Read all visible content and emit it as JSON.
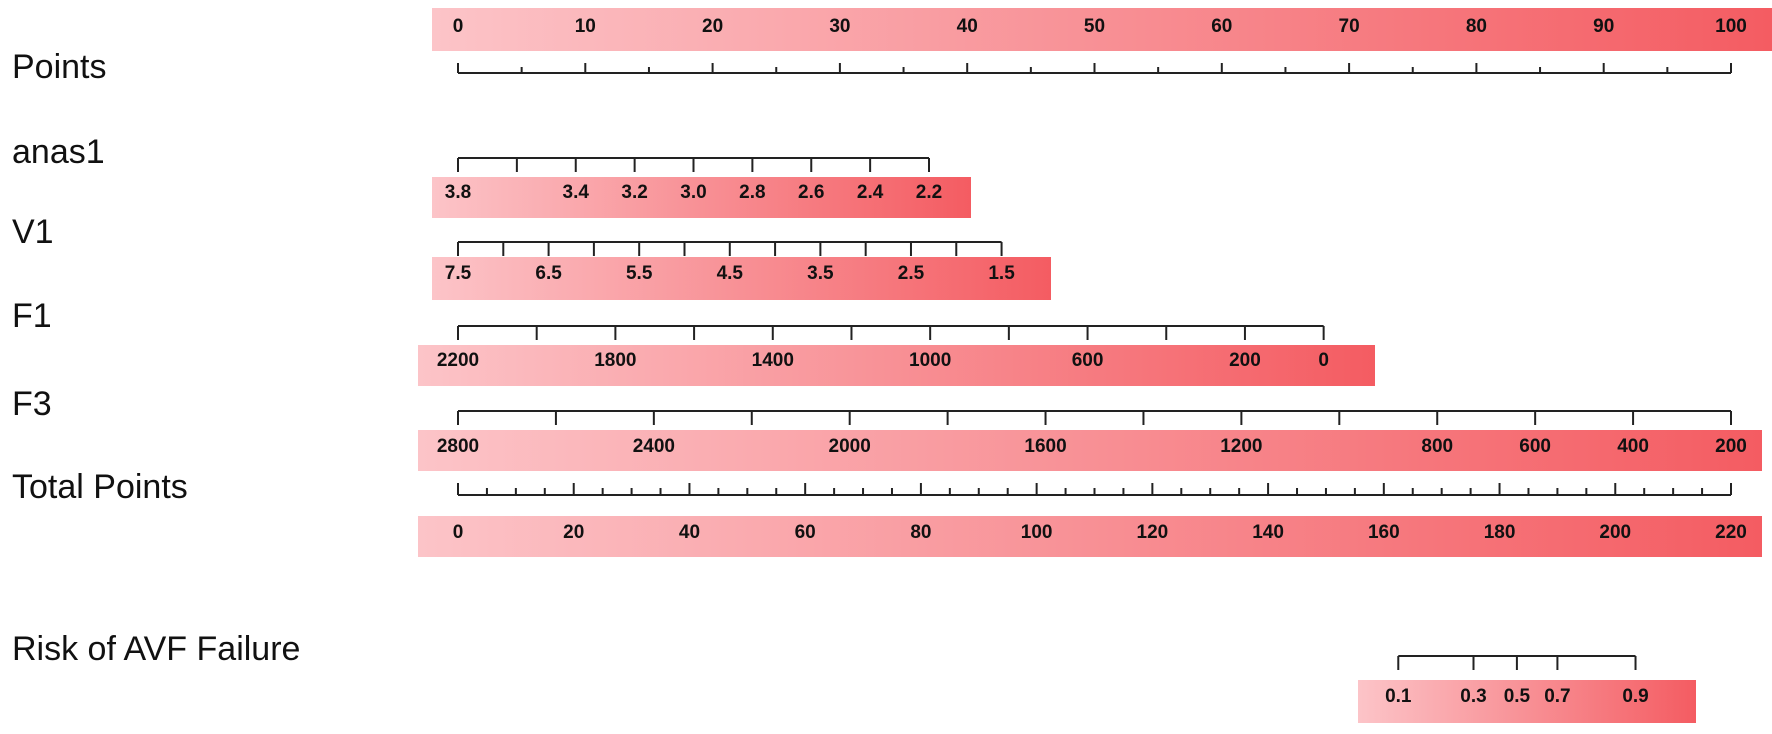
{
  "chart_data": {
    "type": "nomogram",
    "title": "",
    "rows": [
      {
        "name": "Points",
        "label_text": "Points",
        "scale_min": 0,
        "scale_max": 100,
        "major_ticks": [
          0,
          10,
          20,
          30,
          40,
          50,
          60,
          70,
          80,
          90,
          100
        ],
        "minor_ticks": [
          5,
          15,
          25,
          35,
          45,
          55,
          65,
          75,
          85,
          95
        ],
        "labels": [
          "0",
          "10",
          "20",
          "30",
          "40",
          "50",
          "60",
          "70",
          "80",
          "90",
          "100"
        ],
        "label_position": "above",
        "points_start": 0,
        "points_end": 100
      },
      {
        "name": "anas1",
        "label_text": "anas1",
        "scale_min": 3.8,
        "scale_max": 2.2,
        "major_ticks": [
          3.8,
          3.6,
          3.4,
          3.2,
          3.0,
          2.8,
          2.6,
          2.4,
          2.2
        ],
        "minor_ticks": [],
        "labels": [
          "3.8",
          "3.4",
          "3.2",
          "3.0",
          "2.8",
          "2.6",
          "2.4",
          "2.2"
        ],
        "label_values": [
          3.8,
          3.4,
          3.2,
          3.0,
          2.8,
          2.6,
          2.4,
          2.2
        ],
        "label_position": "below",
        "points_start": 0,
        "points_end": 37
      },
      {
        "name": "V1",
        "label_text": "V1",
        "scale_min": 7.5,
        "scale_max": 1.5,
        "major_ticks": [
          7.5,
          7.0,
          6.5,
          6.0,
          5.5,
          5.0,
          4.5,
          4.0,
          3.5,
          3.0,
          2.5,
          2.0,
          1.5
        ],
        "minor_ticks": [],
        "labels": [
          "7.5",
          "6.5",
          "5.5",
          "4.5",
          "3.5",
          "2.5",
          "1.5"
        ],
        "label_values": [
          7.5,
          6.5,
          5.5,
          4.5,
          3.5,
          2.5,
          1.5
        ],
        "label_position": "below",
        "points_start": 0,
        "points_end": 42.7
      },
      {
        "name": "F1",
        "label_text": "F1",
        "scale_min": 2200,
        "scale_max": 0,
        "major_ticks": [
          2200,
          2000,
          1800,
          1600,
          1400,
          1200,
          1000,
          800,
          600,
          400,
          200,
          0
        ],
        "minor_ticks": [],
        "labels": [
          "2200",
          "1800",
          "1400",
          "1000",
          "600",
          "200",
          "0"
        ],
        "label_values": [
          2200,
          1800,
          1400,
          1000,
          600,
          200,
          0
        ],
        "label_position": "below",
        "points_start": 0,
        "points_end": 68
      },
      {
        "name": "F3",
        "label_text": "F3",
        "scale_min": 2800,
        "scale_max": 200,
        "major_ticks": [
          2800,
          2600,
          2400,
          2200,
          2000,
          1800,
          1600,
          1400,
          1200,
          1000,
          800,
          600,
          400,
          200
        ],
        "minor_ticks": [],
        "labels": [
          "2800",
          "2400",
          "2000",
          "1600",
          "1200",
          "800",
          "600",
          "400",
          "200"
        ],
        "label_values": [
          2800,
          2400,
          2000,
          1600,
          1200,
          800,
          600,
          400,
          200
        ],
        "label_position": "below",
        "points_start": 0,
        "points_end": 100
      },
      {
        "name": "Total Points",
        "label_text": "Total Points",
        "scale_min": 0,
        "scale_max": 220,
        "major_ticks": [
          0,
          20,
          40,
          60,
          80,
          100,
          120,
          140,
          160,
          180,
          200,
          220
        ],
        "minor_ticks": [
          5,
          10,
          15,
          25,
          30,
          35,
          45,
          50,
          55,
          65,
          70,
          75,
          85,
          90,
          95,
          105,
          110,
          115,
          125,
          130,
          135,
          145,
          150,
          155,
          165,
          170,
          175,
          185,
          190,
          195,
          205,
          210,
          215
        ],
        "labels": [
          "0",
          "20",
          "40",
          "60",
          "80",
          "100",
          "120",
          "140",
          "160",
          "180",
          "200",
          "220"
        ],
        "label_values": [
          0,
          20,
          40,
          60,
          80,
          100,
          120,
          140,
          160,
          180,
          200,
          220
        ],
        "label_position": "below",
        "total_points_range": [
          0,
          220
        ]
      },
      {
        "name": "Risk of AVF Failure",
        "label_text": "Risk of AVF Failure",
        "scale_min": 0.1,
        "scale_max": 0.9,
        "major_ticks": [
          0.1,
          0.3,
          0.5,
          0.7,
          0.9
        ],
        "minor_ticks": [],
        "labels": [
          "0.1",
          "0.3",
          "0.5",
          "0.7",
          "0.9"
        ],
        "label_values": [
          0.1,
          0.3,
          0.5,
          0.7,
          0.9
        ],
        "label_position": "below",
        "total_points_at_ticks": [
          162.5,
          175.5,
          183,
          190,
          203.5
        ]
      }
    ],
    "colors": {
      "gradient_start": "#fcc4c8",
      "gradient_end": "#f45c62",
      "axis": "#222222",
      "text": "#111111"
    },
    "grid": false,
    "legend": "none"
  }
}
